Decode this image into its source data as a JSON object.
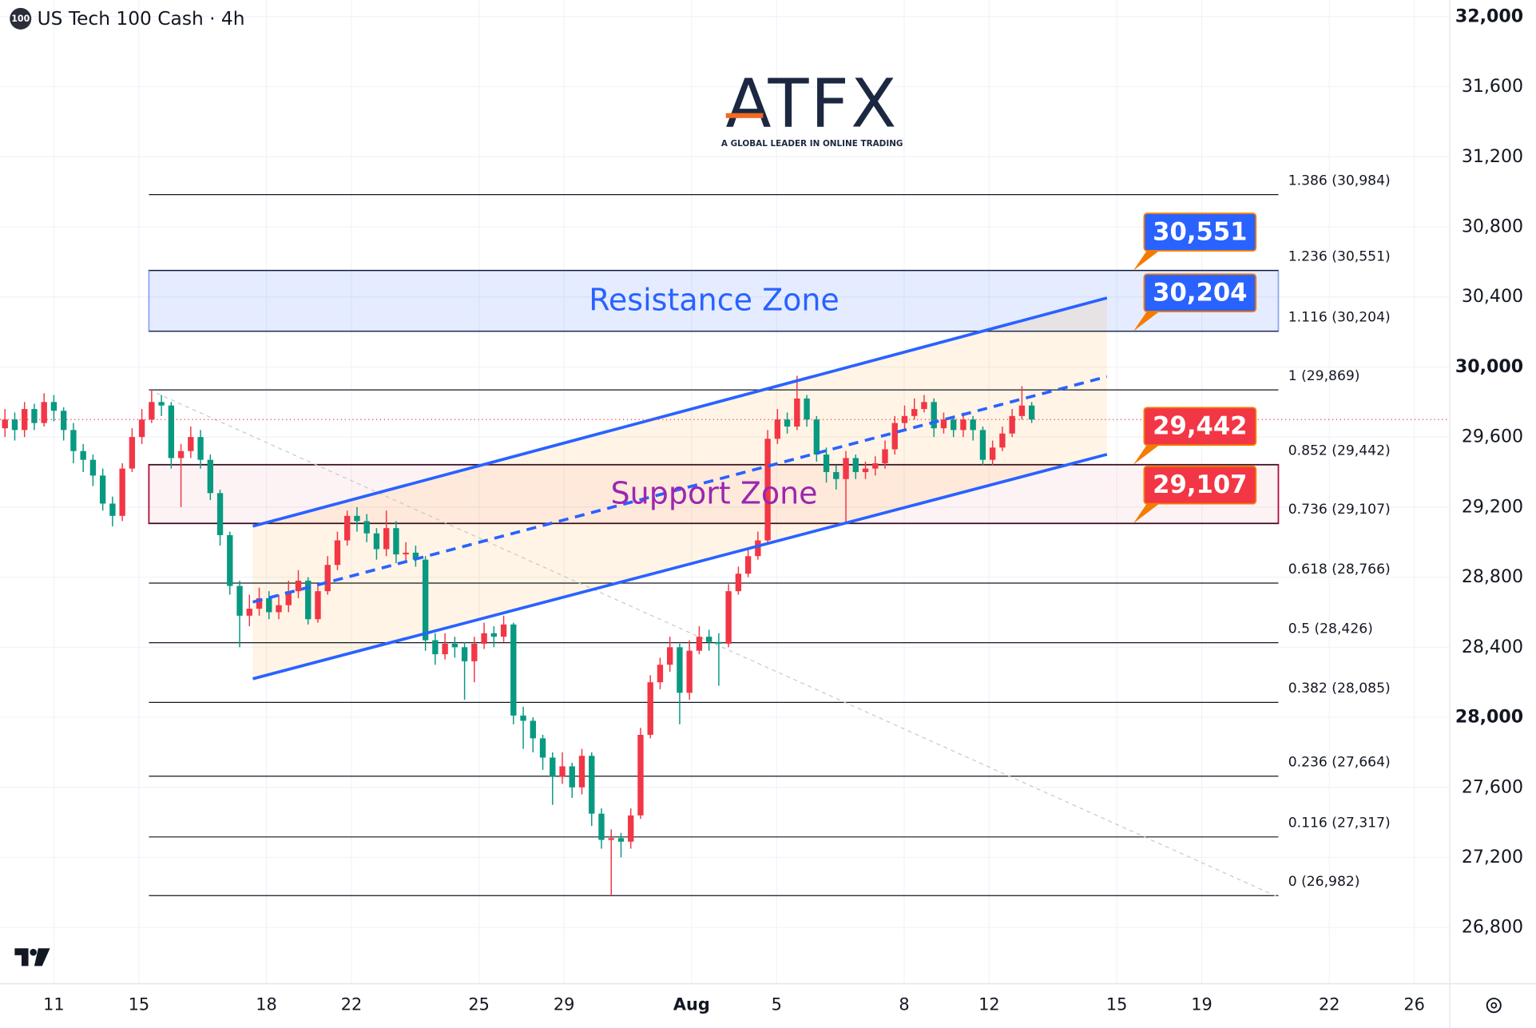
{
  "chart_data": {
    "type": "candlestick",
    "symbol_icon": "100",
    "title": "US Tech 100 Cash · 4h",
    "logo": "ATFX",
    "logo_tagline": "A GLOBAL LEADER IN ONLINE TRADING",
    "up_color": "#f23645",
    "down_color": "#089981",
    "grid": true,
    "xlim": [
      -1.267,
      32.834
    ],
    "ylim": [
      26479,
      32095
    ],
    "xticks": [
      {
        "value": 0,
        "label": "11"
      },
      {
        "value": 2,
        "label": "15"
      },
      {
        "value": 5,
        "label": "18"
      },
      {
        "value": 7,
        "label": "22"
      },
      {
        "value": 10,
        "label": "25"
      },
      {
        "value": 12,
        "label": "29"
      },
      {
        "value": 15,
        "label": "Aug"
      },
      {
        "value": 17,
        "label": "5"
      },
      {
        "value": 20,
        "label": "8"
      },
      {
        "value": 22,
        "label": "12"
      },
      {
        "value": 25,
        "label": "15"
      },
      {
        "value": 27,
        "label": "19"
      },
      {
        "value": 30,
        "label": "22"
      },
      {
        "value": 32,
        "label": "26"
      }
    ],
    "yticks": [
      {
        "value": 26800,
        "label": "26,800"
      },
      {
        "value": 27200,
        "label": "27,200"
      },
      {
        "value": 27600,
        "label": "27,600"
      },
      {
        "value": 28000,
        "label": "28,000"
      },
      {
        "value": 28400,
        "label": "28,400"
      },
      {
        "value": 28800,
        "label": "28,800"
      },
      {
        "value": 29200,
        "label": "29,200"
      },
      {
        "value": 29600,
        "label": "29,600"
      },
      {
        "value": 30000,
        "label": "30,000"
      },
      {
        "value": 30400,
        "label": "30,400"
      },
      {
        "value": 30800,
        "label": "30,800"
      },
      {
        "value": 31200,
        "label": "31,200"
      },
      {
        "value": 31600,
        "label": "31,600"
      },
      {
        "value": 32000,
        "label": "32,000"
      }
    ],
    "x": [
      -1.15,
      -0.92,
      -0.69,
      -0.46,
      -0.23,
      0,
      0.23,
      0.46,
      0.69,
      0.92,
      1.15,
      1.38,
      1.61,
      1.84,
      2.07,
      2.3,
      2.53,
      2.76,
      2.99,
      3.22,
      3.45,
      3.68,
      3.91,
      4.14,
      4.37,
      4.6,
      4.83,
      5.06,
      5.29,
      5.52,
      5.75,
      5.98,
      6.21,
      6.44,
      6.67,
      6.9,
      7.13,
      7.36,
      7.59,
      7.82,
      8.05,
      8.28,
      8.51,
      8.74,
      8.97,
      9.2,
      9.43,
      9.66,
      9.89,
      10.12,
      10.35,
      10.58,
      10.81,
      11.04,
      11.27,
      11.5,
      11.73,
      11.96,
      12.19,
      12.42,
      12.65,
      12.88,
      13.11,
      13.34,
      13.57,
      13.8,
      14.03,
      14.26,
      14.49,
      14.72,
      14.95,
      15.18,
      15.41,
      15.64,
      15.87,
      16.1,
      16.33,
      16.56,
      16.79,
      17.02,
      17.25,
      17.48,
      17.71,
      17.94,
      18.17,
      18.4,
      18.63,
      18.86,
      19.09,
      19.32,
      19.55,
      19.78,
      20.01,
      20.24,
      20.47,
      20.7,
      20.93,
      21.16,
      21.39,
      21.62,
      21.85,
      22.08,
      22.31,
      22.54,
      22.77,
      23
    ],
    "open": [
      29650,
      29700,
      29640,
      29760,
      29680,
      29800,
      29750,
      29640,
      29520,
      29470,
      29380,
      29220,
      29150,
      29420,
      29600,
      29700,
      29800,
      29780,
      29480,
      29520,
      29600,
      29470,
      29280,
      29040,
      28750,
      28580,
      28620,
      28680,
      28600,
      28640,
      28720,
      28780,
      28560,
      28720,
      28870,
      29010,
      29150,
      29120,
      29050,
      28960,
      29080,
      28930,
      28940,
      28900,
      28440,
      28360,
      28420,
      28400,
      28320,
      28420,
      28480,
      28460,
      28530,
      28010,
      27980,
      27880,
      27770,
      27660,
      27720,
      27600,
      27780,
      27450,
      27300,
      27310,
      27290,
      27440,
      27900,
      28200,
      28300,
      28400,
      28140,
      28380,
      28460,
      28430,
      28420,
      28720,
      28820,
      28920,
      29010,
      29590,
      29700,
      29660,
      29820,
      29700,
      29500,
      29400,
      29360,
      29480,
      29400,
      29420,
      29450,
      29530,
      29680,
      29720,
      29760,
      29800,
      29650,
      29700,
      29640,
      29700,
      29640,
      29470,
      29540,
      29620,
      29720,
      29780
    ],
    "high": [
      29760,
      29740,
      29800,
      29790,
      29850,
      29840,
      29770,
      29680,
      29560,
      29500,
      29420,
      29260,
      29450,
      29650,
      29760,
      29870,
      29840,
      29800,
      29560,
      29660,
      29640,
      29500,
      29300,
      29060,
      28780,
      28700,
      28740,
      28720,
      28700,
      28780,
      28840,
      28800,
      28760,
      28920,
      29060,
      29180,
      29200,
      29160,
      29080,
      29180,
      29120,
      29000,
      28980,
      28920,
      28480,
      28480,
      28460,
      28430,
      28460,
      28540,
      28520,
      28580,
      28540,
      28060,
      28000,
      27900,
      27800,
      27800,
      27740,
      27820,
      27800,
      27480,
      27360,
      27340,
      27480,
      27940,
      28240,
      28340,
      28460,
      28420,
      28440,
      28520,
      28500,
      28480,
      28760,
      28860,
      28960,
      29060,
      29640,
      29760,
      29740,
      29950,
      29840,
      29720,
      29540,
      29440,
      29520,
      29500,
      29460,
      29490,
      29580,
      29720,
      29780,
      29820,
      29840,
      29820,
      29740,
      29720,
      29740,
      29720,
      29660,
      29580,
      29660,
      29760,
      29890,
      29800
    ],
    "low": [
      29600,
      29580,
      29600,
      29640,
      29660,
      29690,
      29580,
      29450,
      29400,
      29320,
      29180,
      29090,
      29120,
      29400,
      29560,
      29680,
      29720,
      29420,
      29200,
      29480,
      29420,
      29240,
      28980,
      28700,
      28400,
      28520,
      28580,
      28560,
      28560,
      28600,
      28680,
      28530,
      28540,
      28700,
      28840,
      28980,
      29060,
      29000,
      28900,
      28920,
      28880,
      28880,
      28860,
      28380,
      28300,
      28330,
      28340,
      28100,
      28200,
      28390,
      28400,
      28430,
      27960,
      27820,
      27800,
      27700,
      27500,
      27620,
      27540,
      27560,
      27380,
      27250,
      26982,
      27200,
      27250,
      27420,
      27880,
      28160,
      28260,
      27960,
      28100,
      28360,
      28380,
      28180,
      28400,
      28700,
      28800,
      28900,
      28990,
      29560,
      29620,
      29640,
      29660,
      29460,
      29340,
      29300,
      29110,
      29360,
      29360,
      29380,
      29420,
      29500,
      29640,
      29700,
      29740,
      29600,
      29620,
      29600,
      29600,
      29580,
      29440,
      29440,
      29520,
      29600,
      29700,
      29680
    ],
    "close": [
      29700,
      29640,
      29760,
      29680,
      29800,
      29750,
      29640,
      29520,
      29470,
      29380,
      29220,
      29150,
      29420,
      29600,
      29700,
      29800,
      29780,
      29480,
      29520,
      29600,
      29470,
      29280,
      29040,
      28750,
      28580,
      28620,
      28680,
      28600,
      28640,
      28720,
      28780,
      28560,
      28720,
      28870,
      29010,
      29150,
      29120,
      29050,
      28960,
      29080,
      28930,
      28940,
      28900,
      28440,
      28360,
      28420,
      28400,
      28320,
      28420,
      28480,
      28460,
      28530,
      28010,
      27980,
      27880,
      27770,
      27660,
      27720,
      27600,
      27780,
      27450,
      27300,
      27310,
      27290,
      27440,
      27900,
      28200,
      28300,
      28400,
      28140,
      28380,
      28460,
      28430,
      28420,
      28720,
      28820,
      28920,
      29010,
      29590,
      29700,
      29660,
      29820,
      29700,
      29500,
      29400,
      29360,
      29480,
      29400,
      29420,
      29450,
      29530,
      29680,
      29720,
      29760,
      29800,
      29650,
      29700,
      29640,
      29700,
      29640,
      29470,
      29540,
      29620,
      29720,
      29780,
      29700
    ],
    "fibs": [
      {
        "label": "1.386 (30,984)",
        "value": 30984
      },
      {
        "label": "1.236 (30,551)",
        "value": 30551
      },
      {
        "label": "1.116 (30,204)",
        "value": 30204
      },
      {
        "label": "1 (29,869)",
        "value": 29869
      },
      {
        "label": "0.852 (29,442)",
        "value": 29442
      },
      {
        "label": "0.736 (29,107)",
        "value": 29107
      },
      {
        "label": "0.618 (28,766)",
        "value": 28766
      },
      {
        "label": "0.5 (28,426)",
        "value": 28426
      },
      {
        "label": "0.382 (28,085)",
        "value": 28085
      },
      {
        "label": "0.236 (27,664)",
        "value": 27664
      },
      {
        "label": "0.116 (27,317)",
        "value": 27317
      },
      {
        "label": "0 (26,982)",
        "value": 26982
      }
    ],
    "zones": [
      {
        "label": "Resistance Zone",
        "low": 30204,
        "high": 30551,
        "fill": "rgba(41,98,255,0.12)",
        "stroke": "#90a9f0",
        "text_color": "#2962ff"
      },
      {
        "label": "Support Zone",
        "low": 29107,
        "high": 29442,
        "fill": "rgba(242,54,69,0.06)",
        "stroke": "#b0123d",
        "text_color": "#9c27b0"
      }
    ],
    "price_tags": [
      {
        "value": 30551,
        "label": "30,551",
        "color": "#2962ff"
      },
      {
        "value": 30204,
        "label": "30,204",
        "color": "#2962ff"
      },
      {
        "value": 29442,
        "label": "29,442",
        "color": "#f23645"
      },
      {
        "value": 29107,
        "label": "29,107",
        "color": "#f23645"
      }
    ],
    "channel": {
      "color": "#2962ff",
      "fill": "rgba(255,152,0,0.1)",
      "upper": {
        "x": [
          4.68,
          24.77
        ],
        "y": [
          29091,
          30394
        ]
      },
      "middle": {
        "x": [
          4.68,
          24.77
        ],
        "y": [
          28658,
          29945
        ]
      },
      "lower": {
        "x": [
          4.68,
          24.77
        ],
        "y": [
          28220,
          29501
        ]
      }
    },
    "diagonal": {
      "x": [
        2.42,
        28.8
      ],
      "y": [
        29850,
        26974
      ],
      "color": "#c8c8c8"
    }
  }
}
